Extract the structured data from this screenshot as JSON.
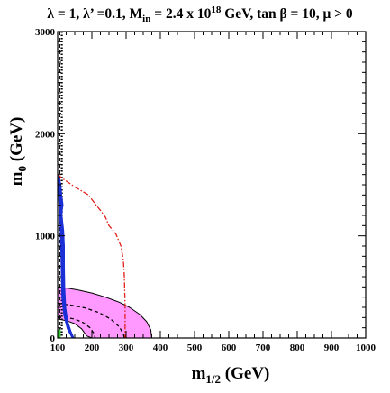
{
  "chart_data": {
    "type": "line",
    "title_parts": {
      "lambda": "λ = 1, λ’ =0.1, M",
      "in_sub": "in",
      "mid": " = 2.4 x 10",
      "exp": "18",
      "tail": " GeV, tan β = 10,  μ > 0"
    },
    "xlabel": {
      "main": "m",
      "sub": "1/2",
      "unit": " (GeV)"
    },
    "ylabel": {
      "main": "m",
      "sub": "0",
      "unit": " (GeV)"
    },
    "xlim": [
      100,
      1000
    ],
    "ylim": [
      0,
      3000
    ],
    "x_ticks": [
      100,
      200,
      300,
      400,
      500,
      600,
      700,
      800,
      900,
      1000
    ],
    "x_tick_labels": [
      "100",
      "200",
      "300",
      "400",
      "500",
      "600",
      "700",
      "800",
      "900",
      "1000"
    ],
    "y_ticks": [
      0,
      1000,
      2000,
      3000
    ],
    "y_tick_labels": [
      "0",
      "1000",
      "2000",
      "3000"
    ],
    "x_minor_step": 25,
    "y_minor_step": 100,
    "colors": {
      "magenta_region": "#ff99ff",
      "red_curve": "#e0201b",
      "blue_curve": "#1a2fd6",
      "green_region": "#33cc33",
      "black": "#000000"
    },
    "series": [
      {
        "key": "pink_region",
        "kind": "filled",
        "fill": "#ff99ff",
        "stroke": "#000000",
        "points": [
          [
            100,
            490
          ],
          [
            130,
            488
          ],
          [
            160,
            470
          ],
          [
            200,
            440
          ],
          [
            240,
            400
          ],
          [
            280,
            350
          ],
          [
            310,
            300
          ],
          [
            340,
            230
          ],
          [
            360,
            160
          ],
          [
            372,
            80
          ],
          [
            375,
            0
          ],
          [
            200,
            0
          ],
          [
            185,
            20
          ],
          [
            170,
            90
          ],
          [
            150,
            140
          ],
          [
            130,
            165
          ],
          [
            110,
            180
          ],
          [
            100,
            185
          ]
        ]
      },
      {
        "key": "dashed_curve_inner",
        "kind": "line",
        "dash": "4,3",
        "stroke": "#000000",
        "points": [
          [
            100,
            340
          ],
          [
            140,
            320
          ],
          [
            180,
            295
          ],
          [
            220,
            250
          ],
          [
            255,
            185
          ],
          [
            280,
            110
          ],
          [
            292,
            40
          ],
          [
            295,
            0
          ]
        ]
      },
      {
        "key": "dashed_curve_lower",
        "kind": "line",
        "dash": "4,3",
        "stroke": "#000000",
        "points": [
          [
            100,
            205
          ],
          [
            125,
            200
          ],
          [
            150,
            185
          ],
          [
            175,
            150
          ],
          [
            195,
            100
          ],
          [
            205,
            50
          ],
          [
            210,
            0
          ]
        ]
      },
      {
        "key": "vertical_dotted",
        "kind": "line",
        "dash": "1.5,2",
        "stroke": "#000000",
        "width": 2.2,
        "points": [
          [
            112,
            3000
          ],
          [
            112,
            0
          ]
        ]
      },
      {
        "key": "vertical_dashed",
        "kind": "line",
        "dash": "4,3",
        "stroke": "#000000",
        "points": [
          [
            106,
            3000
          ],
          [
            106,
            0
          ]
        ]
      },
      {
        "key": "red_dot_dash",
        "kind": "line",
        "dash": "6,2,1.5,2",
        "stroke": "#e0201b",
        "points": [
          [
            100,
            1600
          ],
          [
            115,
            1560
          ],
          [
            150,
            1480
          ],
          [
            190,
            1400
          ],
          [
            215,
            1290
          ],
          [
            225,
            1250
          ],
          [
            240,
            1180
          ],
          [
            250,
            1100
          ],
          [
            270,
            1020
          ],
          [
            285,
            900
          ],
          [
            292,
            760
          ],
          [
            295,
            600
          ],
          [
            296,
            450
          ],
          [
            297,
            300
          ],
          [
            297,
            0
          ]
        ]
      },
      {
        "key": "blue_region",
        "kind": "filled",
        "fill": "#1a2fd6",
        "stroke": "#1a2fd6",
        "points": [
          [
            100,
            1590
          ],
          [
            106,
            1560
          ],
          [
            110,
            1490
          ],
          [
            112,
            1400
          ],
          [
            115,
            1330
          ],
          [
            116,
            1300
          ],
          [
            114,
            1260
          ],
          [
            113,
            1200
          ],
          [
            118,
            1050
          ],
          [
            120,
            900
          ],
          [
            120,
            700
          ],
          [
            121,
            500
          ],
          [
            124,
            300
          ],
          [
            130,
            160
          ],
          [
            140,
            60
          ],
          [
            148,
            0
          ],
          [
            142,
            0
          ],
          [
            128,
            90
          ],
          [
            118,
            220
          ],
          [
            112,
            400
          ],
          [
            110,
            700
          ],
          [
            108,
            1000
          ],
          [
            106,
            1200
          ],
          [
            104,
            1280
          ],
          [
            103,
            1350
          ],
          [
            102,
            1450
          ],
          [
            100,
            1540
          ]
        ]
      },
      {
        "key": "blue_lobe",
        "kind": "filled",
        "fill": "#1a2fd6",
        "stroke": "#1a2fd6",
        "points": [
          [
            104,
            1270
          ],
          [
            108,
            1300
          ],
          [
            112,
            1285
          ],
          [
            112,
            1245
          ],
          [
            108,
            1230
          ],
          [
            104,
            1245
          ]
        ]
      },
      {
        "key": "green_strip",
        "kind": "filled",
        "fill": "#33cc33",
        "stroke": "#33cc33",
        "points": [
          [
            100,
            0
          ],
          [
            108,
            0
          ],
          [
            108,
            80
          ],
          [
            100,
            80
          ]
        ]
      }
    ]
  }
}
